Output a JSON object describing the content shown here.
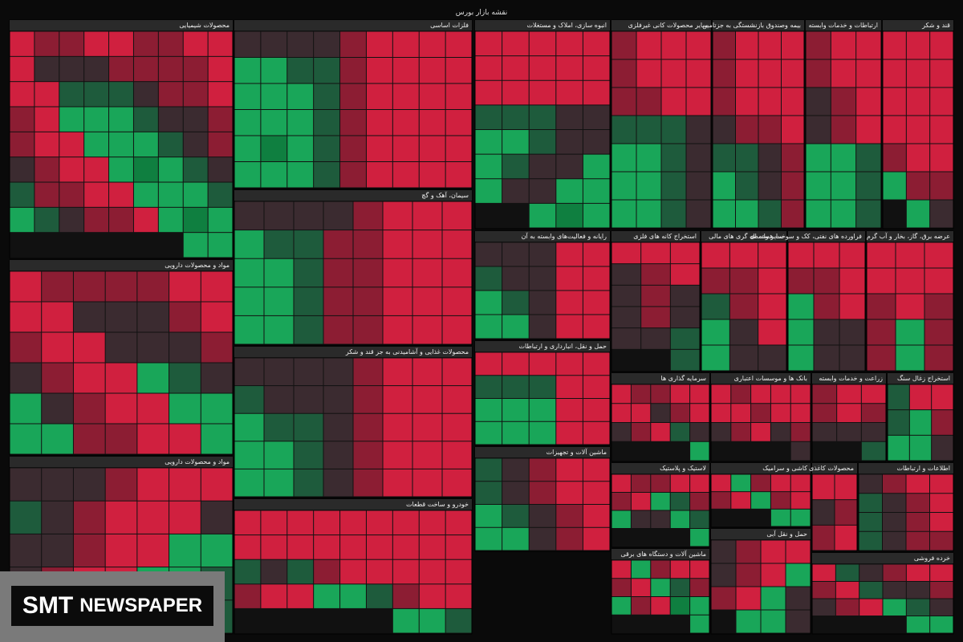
{
  "header": {
    "title": "نقشه بازار بورس"
  },
  "palette": {
    "r": "#d0203f",
    "m": "#8c1d33",
    "k": "#3b2b30",
    "d": "#1e5b3c",
    "g": "#19a659",
    "G": "#0f7f40"
  },
  "sectors": [
    {
      "title": "محصولات شیمیایی",
      "tiles": "rrmmrrmmrrmmmmkkkrrmmkdddrrmkkdgggrmmkdgggrrmkdgGgrrmkdgggrrmmdgGgrmmkdggg"
    },
    {
      "title": "فلزات اساسی",
      "tiles": "rrrrmkkkkrrrrmddggrrrrmdgggrrrrmdgggrrrrmdgGgrrrrmdggg"
    },
    {
      "title": "انبوه سازی، املاک و مستغلات",
      "tiles": "rrrrrrrrrrrrrrrkkdddkkdgggkkdgggkkggGg"
    },
    {
      "title": "سایر محصولات کانی غیرفلزی",
      "tiles": "rrrmrrrmrrmmkdddkdggkdggkdgg"
    },
    {
      "title": "بیمه وصندوق بازنشستگی به جزتامین",
      "tiles": "rrrmrrrmrrrmrmmkmkddmkdgmdgg"
    },
    {
      "title": "ارتباطات و خدمات وابسته",
      "tiles": "rrmrrmrmkrmkdggdggdgg"
    },
    {
      "title": "قند و شکر",
      "tiles": "rrrrrrrrrrrrrrmmmgkg"
    },
    {
      "title": "مواد و محصولات دارویی",
      "tiles": "rrmmmmrrmkkkrrmkkkrrmkdgrrmkggrrmkggrrmmgg"
    },
    {
      "title": "سیمان، آهک و گچ",
      "tiles": "rrrmkkkkrrrmmddgrrrmmdggrrrmmdggrrrmmdgg"
    },
    {
      "title": "رایانه و فعالیت‌های وابسته به آن",
      "tiles": "rrkkkrrkkdrrkdgrrkgg"
    },
    {
      "title": "استخراج کانه های فلزی",
      "tiles": "rrrrmkkmkkmkdkkd"
    },
    {
      "title": "سایر واسطه گری های مالی",
      "tiles": "rrrrmmrmdrkgkkg"
    },
    {
      "title": "فراورده های نفتی، کک و سوخت هسته ای",
      "tiles": "rrrrmmrmgkkgkkg"
    },
    {
      "title": "عرضه برق، گاز، بخار و آب گرم",
      "tiles": "rrrrrrmrmmgmmgm"
    },
    {
      "title": "محصولات غذایی و آشامیدنی به جز قند و شکر",
      "tiles": "rrrmkkkkrrrmkkkdrrrmkddgrrrmkdggrrrmkdgg"
    },
    {
      "title": "حمل و نقل، انبارداری و ارتباطات",
      "tiles": "rrrrrrrdddrrgggrrggg"
    },
    {
      "title": "سرمایه گذاری ها",
      "tiles": "rrmmrrmkrrkdrmkg"
    },
    {
      "title": "بانک ها و موسسات اعتباری",
      "tiles": "rrrmrrrmrrmkrmkk"
    },
    {
      "title": "زراعت و خدمات وابسته",
      "tiles": "rrmmrmkkkd"
    },
    {
      "title": "استخراج زغال سنگ",
      "tiles": "rrdmgdkgg"
    },
    {
      "title": "مواد و محصولات دارویی",
      "tiles": "rrrmkkkkrrrmkdggrrmkkdggrrmkdggg"
    },
    {
      "title": "خودرو و ساخت قطعات",
      "tiles": "rrrrrrrrrrrrrrrrrrrrrrrmdkdrrmdggrrmdgg"
    },
    {
      "title": "ماشین آلات و تجهیزات",
      "tiles": "rrmkdrrmkdrmkdgrmkgg"
    },
    {
      "title": "لاستیک و پلاستیک",
      "tiles": "rrmmrmdgrmdgkkgg"
    },
    {
      "title": "کاشی و سرامیک",
      "tiles": "rrmgrrmgrmgg"
    },
    {
      "title": "محصولات کاغذی",
      "tiles": "rrmkrm"
    },
    {
      "title": "اطلاعات و ارتباطات",
      "tiles": "rrmkrmkdrmkdmmkd"
    },
    {
      "title": "حمل و نقل آبی",
      "tiles": "rrmkgrmkkgrmkgg"
    },
    {
      "title": "خرده فروشی",
      "tiles": "rrmkdrmkkdrmkdgrmkgg"
    },
    {
      "title": "ماشین آلات و دستگاه های برقی",
      "tiles": "rrmgrmdgrmgGrmgg"
    }
  ],
  "watermark": {
    "brand": "SMT",
    "word": "NEWSPAPER"
  }
}
